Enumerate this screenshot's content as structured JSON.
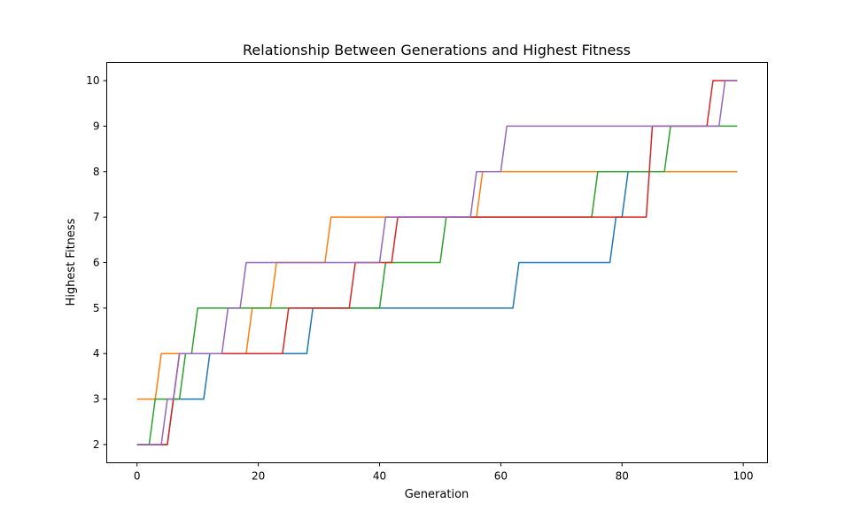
{
  "chart_data": {
    "type": "line",
    "title": "Relationship Between Generations and Highest Fitness",
    "xlabel": "Generation",
    "ylabel": "Highest Fitness",
    "xlim": [
      -5,
      104
    ],
    "ylim": [
      1.6,
      10.4
    ],
    "xticks": [
      0,
      20,
      40,
      60,
      80,
      100
    ],
    "yticks": [
      2,
      3,
      4,
      5,
      6,
      7,
      8,
      9,
      10
    ],
    "grid": false,
    "legend": "none",
    "x": [
      0,
      99
    ],
    "series": [
      {
        "color": "#1f77b4",
        "x": [
          0,
          5,
          6,
          11,
          12,
          28,
          29,
          62,
          63,
          78,
          79,
          80,
          81,
          99
        ],
        "y": [
          2,
          2,
          3,
          3,
          4,
          4,
          5,
          5,
          6,
          6,
          7,
          7,
          8,
          8
        ]
      },
      {
        "color": "#ff7f0e",
        "x": [
          0,
          3,
          4,
          18,
          19,
          22,
          23,
          31,
          32,
          56,
          57,
          99
        ],
        "y": [
          3,
          3,
          4,
          4,
          5,
          5,
          6,
          6,
          7,
          7,
          8,
          8
        ]
      },
      {
        "color": "#2ca02c",
        "x": [
          0,
          2,
          3,
          7,
          8,
          9,
          10,
          40,
          41,
          50,
          51,
          75,
          76,
          87,
          88,
          99
        ],
        "y": [
          2,
          2,
          3,
          3,
          4,
          4,
          5,
          5,
          6,
          6,
          7,
          7,
          8,
          8,
          9,
          9
        ]
      },
      {
        "color": "#d62728",
        "x": [
          0,
          5,
          7,
          24,
          25,
          35,
          36,
          42,
          43,
          84,
          85,
          94,
          95,
          99
        ],
        "y": [
          2,
          2,
          4,
          4,
          5,
          5,
          6,
          6,
          7,
          7,
          9,
          9,
          10,
          10
        ]
      },
      {
        "color": "#9467bd",
        "x": [
          0,
          4,
          5,
          6,
          7,
          14,
          15,
          17,
          18,
          40,
          41,
          55,
          56,
          60,
          61,
          96,
          97,
          99
        ],
        "y": [
          2,
          2,
          3,
          3,
          4,
          4,
          5,
          5,
          6,
          6,
          7,
          7,
          8,
          8,
          9,
          9,
          10,
          10
        ]
      }
    ]
  }
}
